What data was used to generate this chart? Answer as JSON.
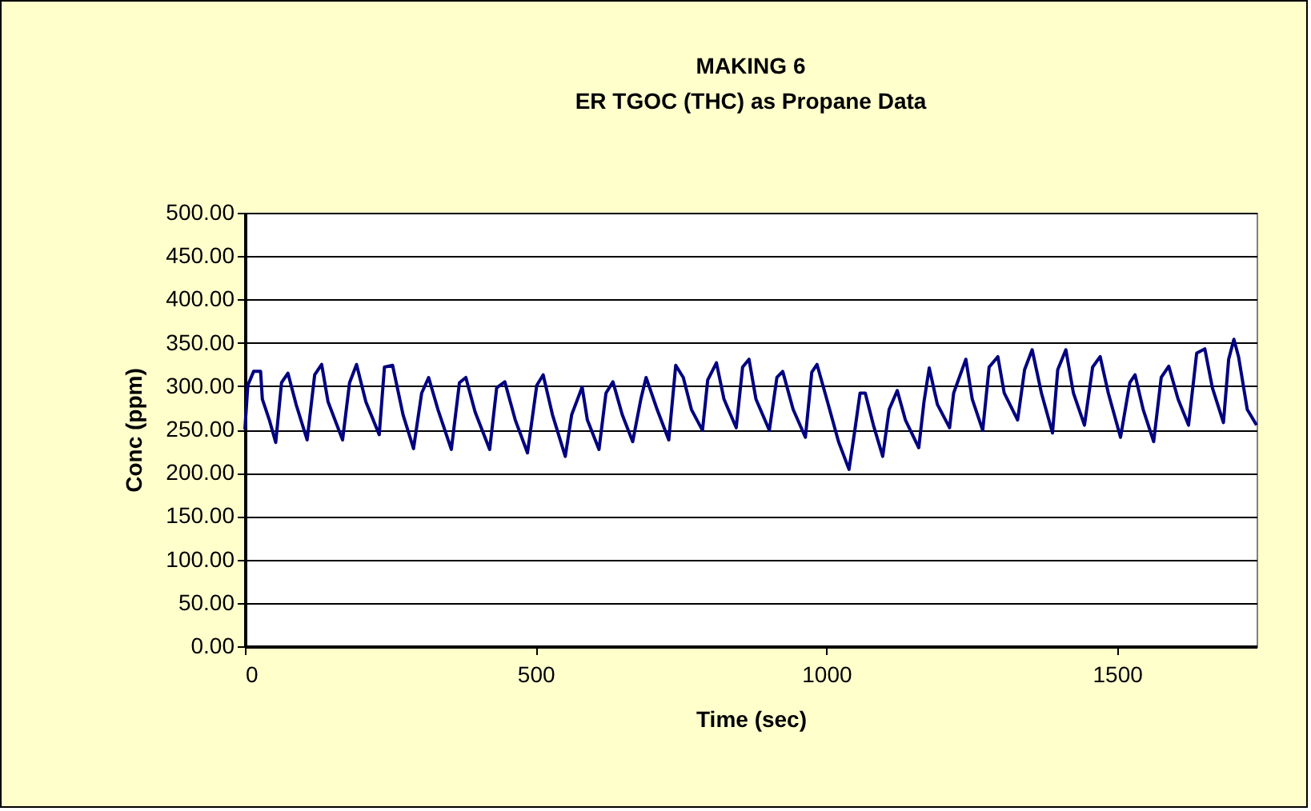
{
  "chart_data": {
    "type": "line",
    "title": "MAKING 6",
    "subtitle": "ER TGOC (THC) as Propane Data",
    "xlabel": "Time (sec)",
    "ylabel": "Conc (ppm)",
    "xlim": [
      0,
      1740
    ],
    "xticks": [
      0,
      500,
      1000,
      1500
    ],
    "ylim": [
      0,
      500
    ],
    "yticks": [
      {
        "value": 0,
        "label": "0.00"
      },
      {
        "value": 50,
        "label": "50.00"
      },
      {
        "value": 100,
        "label": "100.00"
      },
      {
        "value": 150,
        "label": "150.00"
      },
      {
        "value": 200,
        "label": "200.00"
      },
      {
        "value": 250,
        "label": "250.00"
      },
      {
        "value": 300,
        "label": "300.00"
      },
      {
        "value": 350,
        "label": "350.00"
      },
      {
        "value": 400,
        "label": "400.00"
      },
      {
        "value": 450,
        "label": "450.00"
      },
      {
        "value": 500,
        "label": "500.00"
      }
    ],
    "grid": "y",
    "marker": "none",
    "line_style": "solid",
    "x": [
      0,
      5,
      15,
      27,
      30,
      42,
      53,
      63,
      74,
      88,
      107,
      120,
      132,
      143,
      168,
      180,
      192,
      208,
      231,
      240,
      254,
      272,
      290,
      304,
      316,
      332,
      355,
      369,
      380,
      396,
      421,
      433,
      447,
      465,
      486,
      502,
      513,
      529,
      551,
      562,
      580,
      589,
      609,
      621,
      633,
      649,
      667,
      681,
      690,
      709,
      729,
      741,
      754,
      768,
      787,
      796,
      811,
      824,
      845,
      856,
      867,
      879,
      902,
      915,
      925,
      943,
      964,
      975,
      984,
      1002,
      1021,
      1039,
      1049,
      1058,
      1067,
      1081,
      1097,
      1108,
      1122,
      1136,
      1159,
      1168,
      1177,
      1191,
      1212,
      1219,
      1240,
      1251,
      1269,
      1280,
      1295,
      1306,
      1329,
      1341,
      1354,
      1370,
      1389,
      1398,
      1412,
      1425,
      1444,
      1458,
      1471,
      1485,
      1506,
      1522,
      1531,
      1545,
      1563,
      1576,
      1589,
      1605,
      1623,
      1637,
      1651,
      1664,
      1683,
      1692,
      1701,
      1709,
      1724,
      1740
    ],
    "series": [
      {
        "color": "#000080",
        "values": [
          250,
          301,
          317,
          317,
          285,
          261,
          235,
          304,
          315,
          279,
          238,
          313,
          325,
          282,
          238,
          304,
          325,
          282,
          244,
          322,
          324,
          267,
          228,
          292,
          310,
          273,
          227,
          304,
          310,
          270,
          227,
          298,
          305,
          261,
          223,
          301,
          313,
          267,
          219,
          267,
          299,
          261,
          227,
          292,
          305,
          267,
          236,
          285,
          310,
          273,
          238,
          324,
          310,
          273,
          249,
          307,
          327,
          285,
          252,
          322,
          331,
          285,
          249,
          310,
          317,
          273,
          241,
          316,
          325,
          282,
          236,
          204,
          249,
          292,
          292,
          255,
          219,
          273,
          295,
          261,
          229,
          282,
          321,
          279,
          252,
          292,
          331,
          285,
          249,
          322,
          334,
          292,
          261,
          319,
          342,
          292,
          246,
          319,
          342,
          292,
          255,
          322,
          334,
          292,
          241,
          304,
          313,
          273,
          236,
          310,
          323,
          285,
          255,
          338,
          343,
          298,
          258,
          331,
          354,
          334,
          273,
          255
        ]
      }
    ]
  }
}
